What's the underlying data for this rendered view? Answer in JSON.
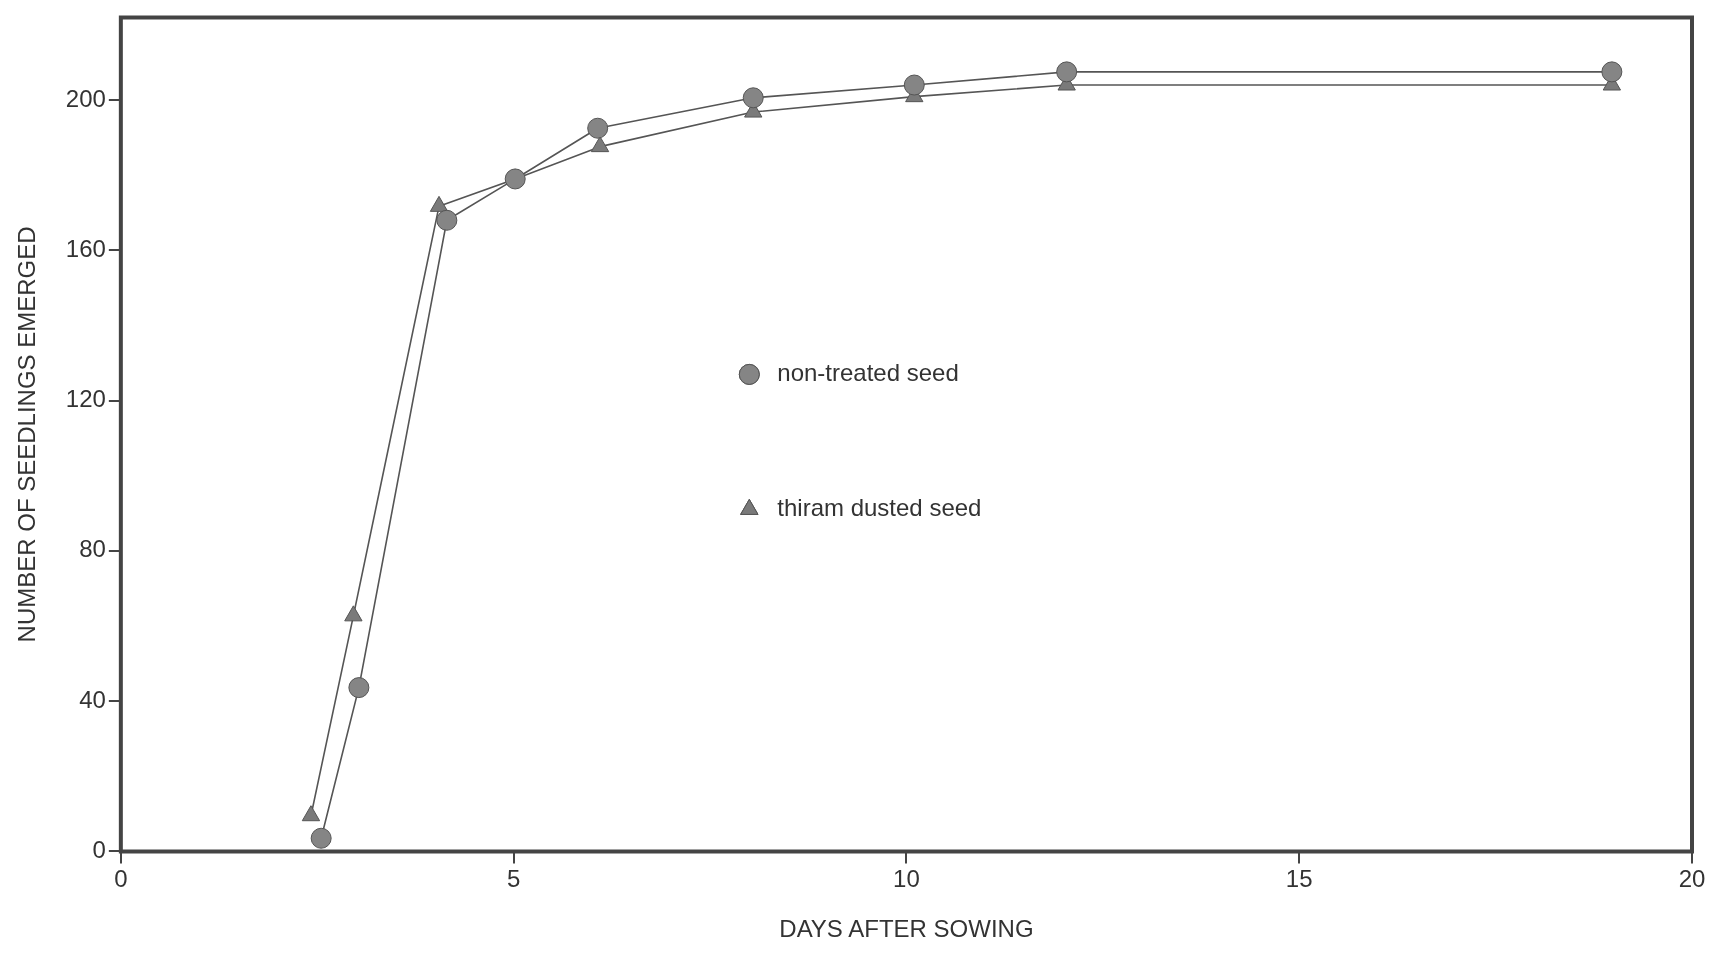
{
  "chart_data": {
    "type": "line",
    "xlabel": "DAYS AFTER SOWING",
    "ylabel": "NUMBER OF SEEDLINGS EMERGED",
    "xlim": [
      0,
      20
    ],
    "xticks": [
      0,
      5,
      10,
      15,
      20
    ],
    "ylim": [
      0,
      222
    ],
    "yticks": [
      0,
      40,
      80,
      120,
      160,
      200
    ],
    "grid": false,
    "legend": "center",
    "series": [
      {
        "name": "non-treated seed",
        "color": "#858585",
        "marker": "circle",
        "x": [
          2.55,
          3.03,
          4.15,
          5.02,
          6.07,
          8.05,
          10.1,
          12.04,
          18.98
        ],
        "values": [
          3.5,
          43.6,
          168,
          179,
          192.5,
          200.6,
          204,
          207.5,
          207.5
        ]
      },
      {
        "name": "thiram dusted seed",
        "color": "#7a7a7a",
        "marker": "triangle",
        "x": [
          2.42,
          2.96,
          4.05,
          5.02,
          6.1,
          8.05,
          10.1,
          12.04,
          18.98
        ],
        "values": [
          9.5,
          62.7,
          171.7,
          179,
          187.6,
          196.8,
          200.9,
          204,
          204
        ]
      }
    ]
  }
}
